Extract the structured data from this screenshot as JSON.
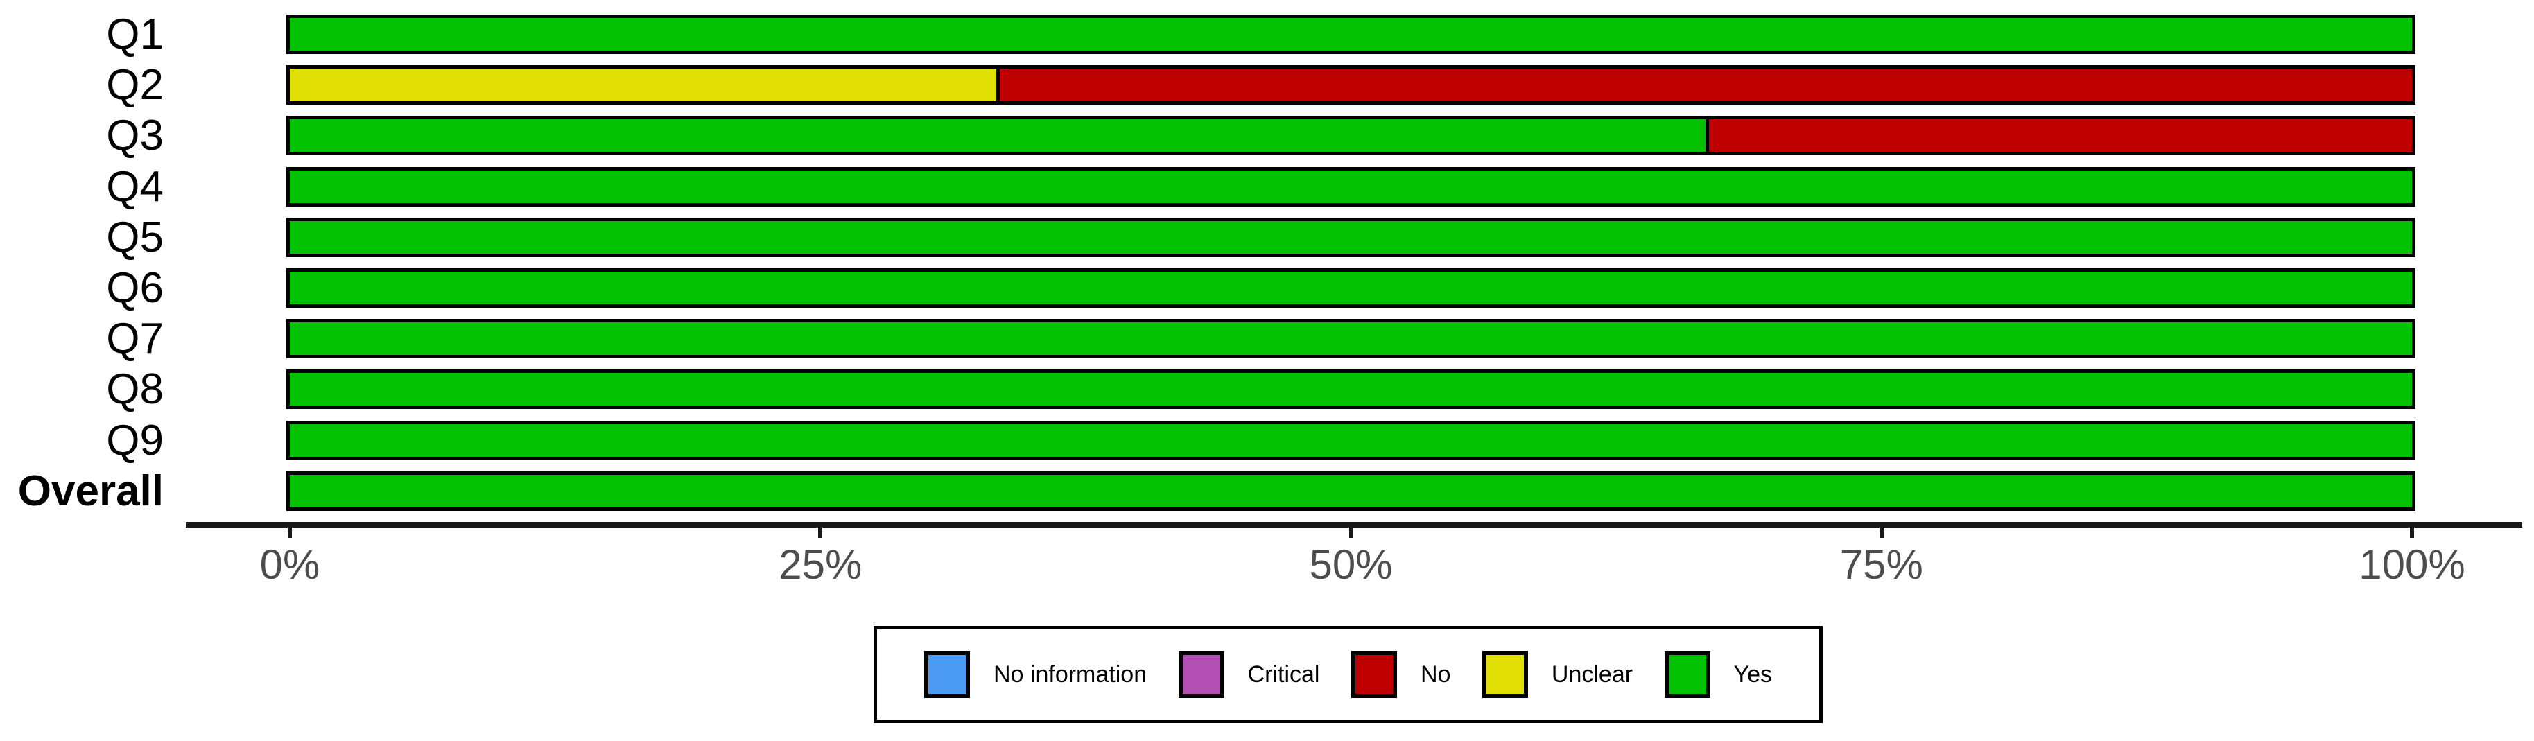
{
  "chart_data": {
    "type": "bar",
    "orientation": "horizontal",
    "stacked": true,
    "title": "",
    "xlabel": "",
    "ylabel": "",
    "grid": false,
    "axis_range_percent": [
      0,
      100
    ],
    "x_ticks": [
      {
        "value": 0,
        "label": "0%"
      },
      {
        "value": 25,
        "label": "25%"
      },
      {
        "value": 50,
        "label": "50%"
      },
      {
        "value": 75,
        "label": "75%"
      },
      {
        "value": 100,
        "label": "100%"
      }
    ],
    "categories": [
      "Q1",
      "Q2",
      "Q3",
      "Q4",
      "Q5",
      "Q6",
      "Q7",
      "Q8",
      "Q9",
      "Overall"
    ],
    "rows": [
      {
        "label": "Q1",
        "bold": false,
        "segments": [
          {
            "name": "Yes",
            "value": 100
          }
        ]
      },
      {
        "label": "Q2",
        "bold": false,
        "segments": [
          {
            "name": "Unclear",
            "value": 33.3
          },
          {
            "name": "No",
            "value": 66.7
          }
        ]
      },
      {
        "label": "Q3",
        "bold": false,
        "segments": [
          {
            "name": "Yes",
            "value": 66.7
          },
          {
            "name": "No",
            "value": 33.3
          }
        ]
      },
      {
        "label": "Q4",
        "bold": false,
        "segments": [
          {
            "name": "Yes",
            "value": 100
          }
        ]
      },
      {
        "label": "Q5",
        "bold": false,
        "segments": [
          {
            "name": "Yes",
            "value": 100
          }
        ]
      },
      {
        "label": "Q6",
        "bold": false,
        "segments": [
          {
            "name": "Yes",
            "value": 100
          }
        ]
      },
      {
        "label": "Q7",
        "bold": false,
        "segments": [
          {
            "name": "Yes",
            "value": 100
          }
        ]
      },
      {
        "label": "Q8",
        "bold": false,
        "segments": [
          {
            "name": "Yes",
            "value": 100
          }
        ]
      },
      {
        "label": "Q9",
        "bold": false,
        "segments": [
          {
            "name": "Yes",
            "value": 100
          }
        ]
      },
      {
        "label": "Overall",
        "bold": true,
        "segments": [
          {
            "name": "Yes",
            "value": 100
          }
        ]
      }
    ],
    "legend": {
      "position": "bottom",
      "items": [
        {
          "label": "No information",
          "color": "#4B9BF2"
        },
        {
          "label": "Critical",
          "color": "#B250B4"
        },
        {
          "label": "No",
          "color": "#BF0000"
        },
        {
          "label": "Unclear",
          "color": "#E2DF07"
        },
        {
          "label": "Yes",
          "color": "#02C100"
        }
      ]
    },
    "colors": {
      "No information": "#4B9BF2",
      "Critical": "#B250B4",
      "No": "#BF0000",
      "Unclear": "#E2DF07",
      "Yes": "#02C100"
    },
    "style_colors": {
      "bar_border": "#000000",
      "axis_line": "#1a1a1a",
      "axis_text": "#4d4d4d",
      "label_text": "#000000",
      "background": "#ffffff"
    }
  }
}
